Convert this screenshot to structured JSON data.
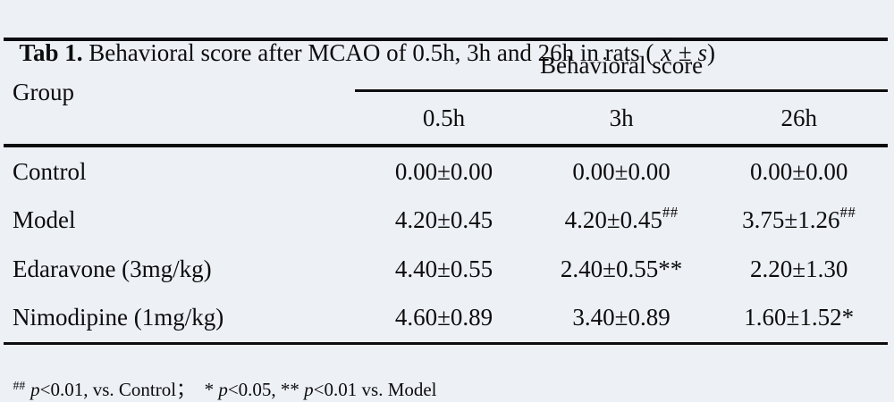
{
  "title": {
    "bold": "Tab 1.",
    "rest": " Behavioral score after MCAO of 0.5h, 3h and 26h in rats ( ",
    "xbar": "x",
    "pm": " ± ",
    "s": "s",
    "close": ")"
  },
  "table": {
    "group_header": "Group",
    "span_header": "Behavioral score",
    "columns": [
      "0.5h",
      "3h",
      "26h"
    ],
    "rows": [
      {
        "group": "Control",
        "cells": [
          {
            "v": "0.00±0.00",
            "sup": ""
          },
          {
            "v": "0.00±0.00",
            "sup": ""
          },
          {
            "v": "0.00±0.00",
            "sup": ""
          }
        ]
      },
      {
        "group": "Model",
        "cells": [
          {
            "v": "4.20±0.45",
            "sup": ""
          },
          {
            "v": "4.20±0.45",
            "sup": "##"
          },
          {
            "v": "3.75±1.26",
            "sup": "##"
          }
        ]
      },
      {
        "group": "Edaravone (3mg/kg)",
        "cells": [
          {
            "v": "4.40±0.55",
            "sup": ""
          },
          {
            "v": "2.40±0.55**",
            "sup": ""
          },
          {
            "v": "2.20±1.30",
            "sup": ""
          }
        ]
      },
      {
        "group": "Nimodipine (1mg/kg)",
        "cells": [
          {
            "v": "4.60±0.89",
            "sup": ""
          },
          {
            "v": "3.40±0.89",
            "sup": ""
          },
          {
            "v": "1.60±1.52*",
            "sup": ""
          }
        ]
      }
    ]
  },
  "footnote": {
    "marker": "##",
    "p1": "p",
    "t1": "<0.01, vs. Control；  * ",
    "p2": "p",
    "t2": "<0.05, ** ",
    "p3": "p",
    "t3": "<0.01 vs. Model"
  },
  "colors": {
    "background": "#edf0f4",
    "rule": "#0d0d10",
    "text": "#0c0c0e"
  }
}
